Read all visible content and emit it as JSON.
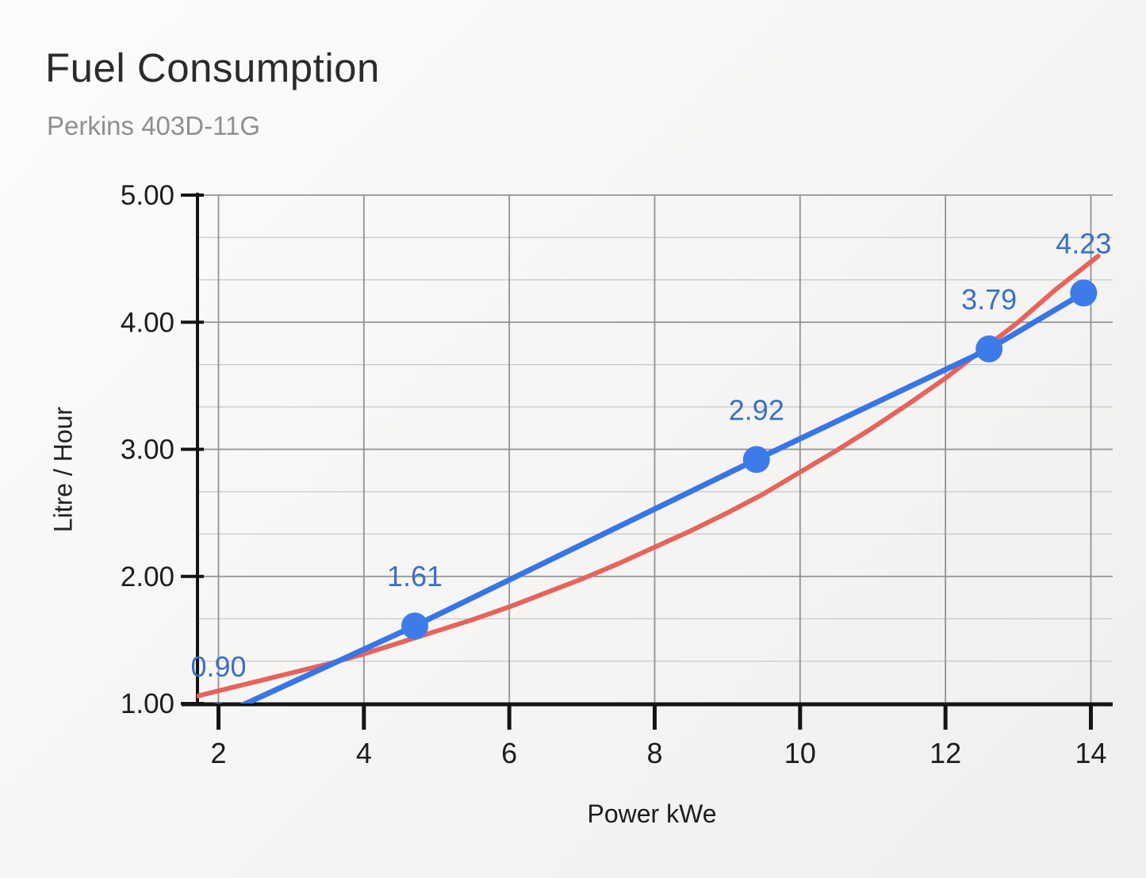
{
  "header": {
    "title": "Fuel Consumption",
    "subtitle": "Perkins 403D-11G"
  },
  "colors": {
    "series_line": "#3875e6",
    "series_marker": "#3d7ce8",
    "trendline": "#e5645b",
    "data_label": "#3a6fc4",
    "axis": "#141414",
    "tick_text": "#1d1d1d",
    "grid_major": "#909396",
    "grid_minor": "#c9cbcd",
    "title_text": "#2b2b2b",
    "subtitle_text": "#8f8f8f"
  },
  "chart_data": {
    "type": "line",
    "title": "Fuel Consumption",
    "subtitle": "Perkins 403D-11G",
    "xlabel": "Power kWe",
    "ylabel": "Litre / Hour",
    "xlim": [
      1.7,
      14.3
    ],
    "ylim": [
      1.0,
      5.0
    ],
    "grid": true,
    "legend": "none",
    "x_ticks": [
      2,
      4,
      6,
      8,
      10,
      12,
      14
    ],
    "y_ticks": [
      {
        "value": 1,
        "label": "1.00"
      },
      {
        "value": 2,
        "label": "2.00"
      },
      {
        "value": 3,
        "label": "3.00"
      },
      {
        "value": 4,
        "label": "4.00"
      },
      {
        "value": 5,
        "label": "5.00"
      }
    ],
    "y_minor_divisions": 3,
    "series": [
      {
        "id": "fuel-consumption",
        "style": "line-with-markers",
        "x": [
          2.0,
          4.7,
          9.4,
          12.6,
          13.9
        ],
        "y": [
          0.9,
          1.61,
          2.92,
          3.79,
          4.23
        ],
        "labels": [
          "0.90",
          "1.61",
          "2.92",
          "3.79",
          "4.23"
        ]
      }
    ],
    "trendline": {
      "id": "trendline",
      "style": "smooth-curve",
      "points": [
        [
          1.72,
          1.06
        ],
        [
          2.0,
          1.1
        ],
        [
          2.5,
          1.17
        ],
        [
          3.0,
          1.24
        ],
        [
          3.5,
          1.31
        ],
        [
          4.0,
          1.39
        ],
        [
          4.5,
          1.48
        ],
        [
          5.0,
          1.57
        ],
        [
          5.5,
          1.66
        ],
        [
          6.0,
          1.76
        ],
        [
          6.5,
          1.87
        ],
        [
          7.0,
          1.98
        ],
        [
          7.5,
          2.1
        ],
        [
          8.0,
          2.23
        ],
        [
          8.5,
          2.36
        ],
        [
          9.0,
          2.5
        ],
        [
          9.5,
          2.65
        ],
        [
          10.0,
          2.82
        ],
        [
          10.5,
          2.99
        ],
        [
          11.0,
          3.17
        ],
        [
          11.5,
          3.36
        ],
        [
          12.0,
          3.56
        ],
        [
          12.5,
          3.78
        ],
        [
          13.0,
          4.0
        ],
        [
          13.5,
          4.25
        ],
        [
          14.1,
          4.52
        ]
      ]
    }
  }
}
